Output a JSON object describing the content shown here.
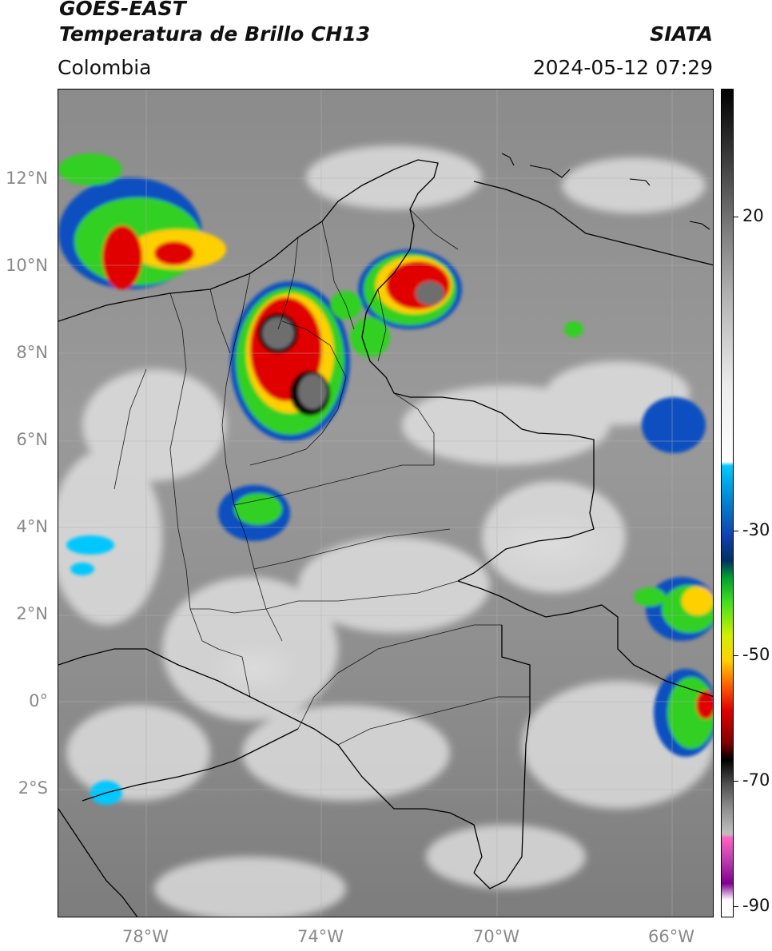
{
  "header": {
    "satellite": "GOES-EAST",
    "product": "Temperatura de Brillo CH13",
    "region": "Colombia",
    "source": "SIATA",
    "datetime": "2024-05-12 07:29"
  },
  "axes": {
    "lat_ticks": [
      "12°N",
      "10°N",
      "8°N",
      "6°N",
      "4°N",
      "2°N",
      "0°",
      "2°S"
    ],
    "lon_ticks": [
      "78°W",
      "74°W",
      "70°W",
      "66°W"
    ]
  },
  "colorbar": {
    "ticks": [
      "20",
      "-30",
      "-50",
      "-70",
      "-90"
    ]
  },
  "colors": {
    "cold_core": "#6e6e6e",
    "black": "#000000",
    "red": "#e00000",
    "yellow": "#ffd000",
    "green": "#30d020",
    "blue": "#1050c0",
    "cyan": "#00c8ff"
  }
}
